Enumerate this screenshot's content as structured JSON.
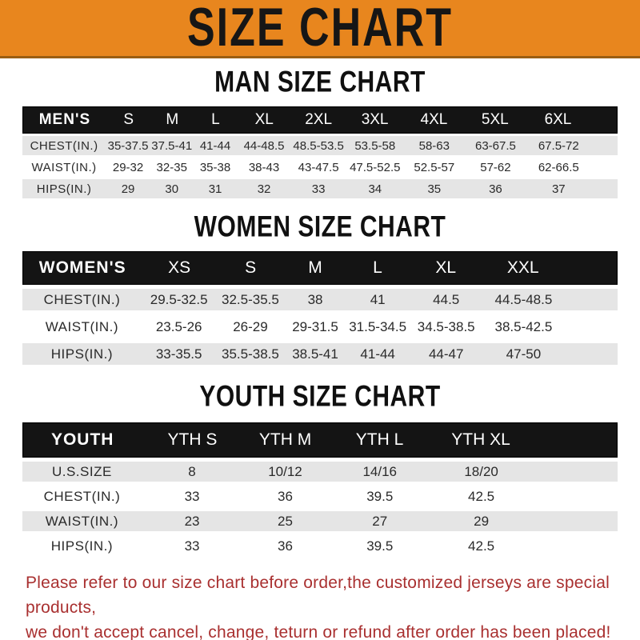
{
  "banner": {
    "title": "SIZE CHART"
  },
  "sections": [
    {
      "heading": "MAN SIZE CHART",
      "table": {
        "header_label": "MEN'S",
        "columns": [
          "S",
          "M",
          "L",
          "XL",
          "2XL",
          "3XL",
          "4XL",
          "5XL",
          "6XL"
        ],
        "rows": [
          {
            "label": "CHEST(IN.)",
            "values": [
              "35-37.5",
              "37.5-41",
              "41-44",
              "44-48.5",
              "48.5-53.5",
              "53.5-58",
              "58-63",
              "63-67.5",
              "67.5-72"
            ]
          },
          {
            "label": "WAIST(IN.)",
            "values": [
              "29-32",
              "32-35",
              "35-38",
              "38-43",
              "43-47.5",
              "47.5-52.5",
              "52.5-57",
              "57-62",
              "62-66.5"
            ]
          },
          {
            "label": "HIPS(IN.)",
            "values": [
              "29",
              "30",
              "31",
              "32",
              "33",
              "34",
              "35",
              "36",
              "37"
            ]
          }
        ]
      }
    },
    {
      "heading": "WOMEN SIZE CHART",
      "table": {
        "header_label": "WOMEN'S",
        "columns": [
          "XS",
          "S",
          "M",
          "L",
          "XL",
          "XXL"
        ],
        "rows": [
          {
            "label": "CHEST(IN.)",
            "values": [
              "29.5-32.5",
              "32.5-35.5",
              "38",
              "41",
              "44.5",
              "44.5-48.5"
            ]
          },
          {
            "label": "WAIST(IN.)",
            "values": [
              "23.5-26",
              "26-29",
              "29-31.5",
              "31.5-34.5",
              "34.5-38.5",
              "38.5-42.5"
            ]
          },
          {
            "label": "HIPS(IN.)",
            "values": [
              "33-35.5",
              "35.5-38.5",
              "38.5-41",
              "41-44",
              "44-47",
              "47-50"
            ]
          }
        ]
      }
    },
    {
      "heading": "YOUTH SIZE CHART",
      "table": {
        "header_label": "YOUTH",
        "columns": [
          "YTH S",
          "YTH M",
          "YTH L",
          "YTH XL"
        ],
        "rows": [
          {
            "label": "U.S.SIZE",
            "values": [
              "8",
              "10/12",
              "14/16",
              "18/20"
            ]
          },
          {
            "label": "CHEST(IN.)",
            "values": [
              "33",
              "36",
              "39.5",
              "42.5"
            ]
          },
          {
            "label": "WAIST(IN.)",
            "values": [
              "23",
              "25",
              "27",
              "29"
            ]
          },
          {
            "label": "HIPS(IN.)",
            "values": [
              "33",
              "36",
              "39.5",
              "42.5"
            ]
          }
        ]
      }
    }
  ],
  "footer": {
    "line1": "Please refer to our size chart before order,the customized jerseys are special products,",
    "line2": "we don't accept cancel, change, teturn or refund after order has been placed!"
  },
  "theme": {
    "banner_bg": "#E8861E",
    "banner_edge": "#9B5E12",
    "header_bar_bg": "#141414",
    "row_stripe": "#E5E5E5",
    "footer_text": "#A93030"
  }
}
